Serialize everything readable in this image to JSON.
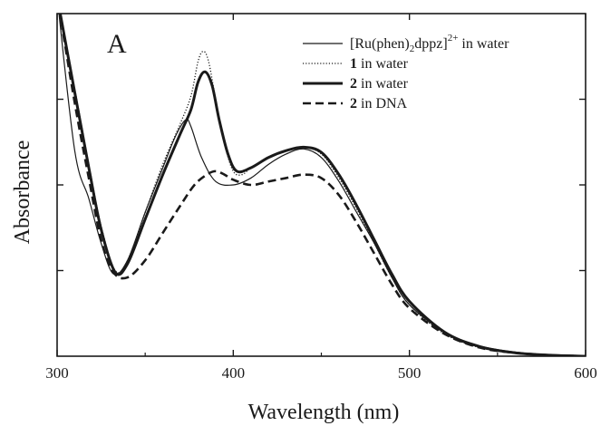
{
  "panel_label": "A",
  "chart_data": {
    "type": "line",
    "title": "",
    "xlabel": "Wavelength (nm)",
    "ylabel": "Absorbance",
    "xlim": [
      300,
      600
    ],
    "ylim": [
      0,
      1.0
    ],
    "x_ticks": [
      300,
      400,
      500,
      600
    ],
    "x_tick_labels": [
      "300",
      "400",
      "500",
      "600"
    ],
    "y_ticks_shown_without_labels": true,
    "grid": false,
    "legend": {
      "placement": "top-right",
      "entries": [
        {
          "series": 0,
          "prefix": "",
          "bold": "",
          "label": "[Ru(phen)",
          "sub": "2",
          "mid": "dppz]",
          "sup": "2+",
          "suffix": " in water",
          "style": "thin-solid"
        },
        {
          "series": 1,
          "prefix": "",
          "bold": "1",
          "label": "",
          "sub": "",
          "mid": "",
          "sup": "",
          "suffix": " in water",
          "style": "dotted"
        },
        {
          "series": 2,
          "prefix": "",
          "bold": "2",
          "label": "",
          "sub": "",
          "mid": "",
          "sup": "",
          "suffix": " in water",
          "style": "thick-solid"
        },
        {
          "series": 3,
          "prefix": "",
          "bold": "2",
          "label": "",
          "sub": "",
          "mid": "",
          "sup": "",
          "suffix": " in DNA",
          "style": "dashed"
        }
      ]
    },
    "series": [
      {
        "style": "thin-solid",
        "color": "#1a1a1a",
        "x": [
          300,
          310,
          318,
          325,
          332,
          340,
          350,
          360,
          367,
          373,
          376,
          382,
          390,
          400,
          410,
          420,
          430,
          440,
          450,
          460,
          470,
          480,
          490,
          500,
          520,
          540,
          560,
          580,
          600
        ],
        "y": [
          1.05,
          0.6,
          0.46,
          0.33,
          0.24,
          0.28,
          0.42,
          0.55,
          0.64,
          0.69,
          0.67,
          0.58,
          0.51,
          0.5,
          0.52,
          0.56,
          0.59,
          0.605,
          0.58,
          0.51,
          0.42,
          0.33,
          0.23,
          0.15,
          0.07,
          0.03,
          0.012,
          0.004,
          0.0
        ]
      },
      {
        "style": "dotted",
        "color": "#1a1a1a",
        "x": [
          300,
          310,
          318,
          325,
          333,
          340,
          350,
          360,
          370,
          376,
          380,
          383,
          386,
          390,
          395,
          400,
          405,
          410,
          420,
          430,
          440,
          450,
          460,
          470,
          480,
          490,
          500,
          520,
          540,
          560,
          580,
          600
        ],
        "y": [
          1.05,
          0.78,
          0.56,
          0.38,
          0.25,
          0.28,
          0.42,
          0.56,
          0.68,
          0.76,
          0.86,
          0.89,
          0.86,
          0.75,
          0.62,
          0.54,
          0.53,
          0.55,
          0.58,
          0.6,
          0.61,
          0.59,
          0.52,
          0.43,
          0.33,
          0.23,
          0.15,
          0.065,
          0.025,
          0.01,
          0.003,
          0.0
        ]
      },
      {
        "style": "thick-solid",
        "color": "#1a1a1a",
        "x": [
          300,
          310,
          318,
          325,
          333,
          340,
          350,
          360,
          370,
          376,
          380,
          384,
          388,
          392,
          397,
          402,
          410,
          420,
          430,
          440,
          450,
          460,
          470,
          480,
          490,
          500,
          520,
          540,
          560,
          580,
          600
        ],
        "y": [
          1.05,
          0.77,
          0.55,
          0.37,
          0.245,
          0.27,
          0.4,
          0.53,
          0.65,
          0.72,
          0.8,
          0.83,
          0.79,
          0.69,
          0.59,
          0.54,
          0.55,
          0.58,
          0.6,
          0.61,
          0.595,
          0.53,
          0.44,
          0.34,
          0.24,
          0.16,
          0.07,
          0.028,
          0.01,
          0.003,
          0.0
        ]
      },
      {
        "style": "dashed",
        "color": "#1a1a1a",
        "x": [
          300,
          310,
          318,
          325,
          332,
          340,
          350,
          360,
          370,
          378,
          385,
          390,
          395,
          400,
          410,
          420,
          430,
          440,
          450,
          460,
          470,
          480,
          490,
          500,
          520,
          540,
          560,
          580,
          600
        ],
        "y": [
          1.05,
          0.74,
          0.52,
          0.34,
          0.245,
          0.23,
          0.28,
          0.36,
          0.44,
          0.5,
          0.53,
          0.54,
          0.53,
          0.515,
          0.5,
          0.51,
          0.52,
          0.53,
          0.52,
          0.47,
          0.39,
          0.3,
          0.21,
          0.14,
          0.065,
          0.025,
          0.01,
          0.003,
          0.0
        ]
      }
    ]
  }
}
